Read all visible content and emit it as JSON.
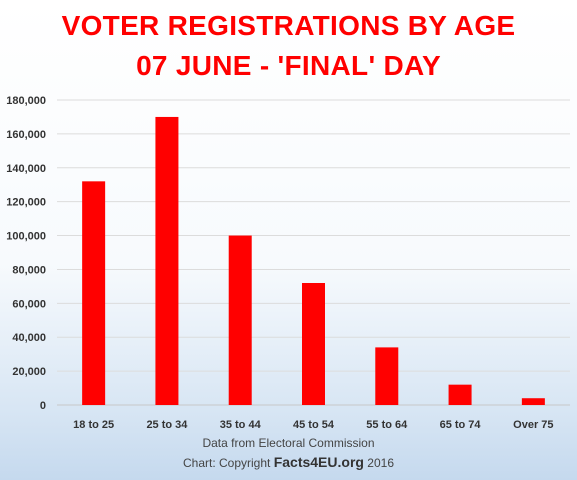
{
  "chart_data": {
    "type": "bar",
    "title": [
      "VOTER REGISTRATIONS BY AGE",
      "07 JUNE - 'FINAL' DAY"
    ],
    "categories": [
      "18 to 25",
      "25 to 34",
      "35 to 44",
      "45 to 54",
      "55 to 64",
      "65 to 74",
      "Over 75"
    ],
    "values": [
      132000,
      170000,
      100000,
      72000,
      34000,
      12000,
      4000
    ],
    "ylim": [
      0,
      180000
    ],
    "yticks": [
      "0",
      "20,000",
      "40,000",
      "60,000",
      "80,000",
      "100,000",
      "120,000",
      "140,000",
      "160,000",
      "180,000"
    ],
    "grid": true,
    "bar_color": "#ff0000"
  },
  "source": {
    "line1": "Data from Electoral Commission",
    "line2_prefix": "Chart: Copyright",
    "brand": "Facts4EU.org",
    "year": "2016"
  }
}
